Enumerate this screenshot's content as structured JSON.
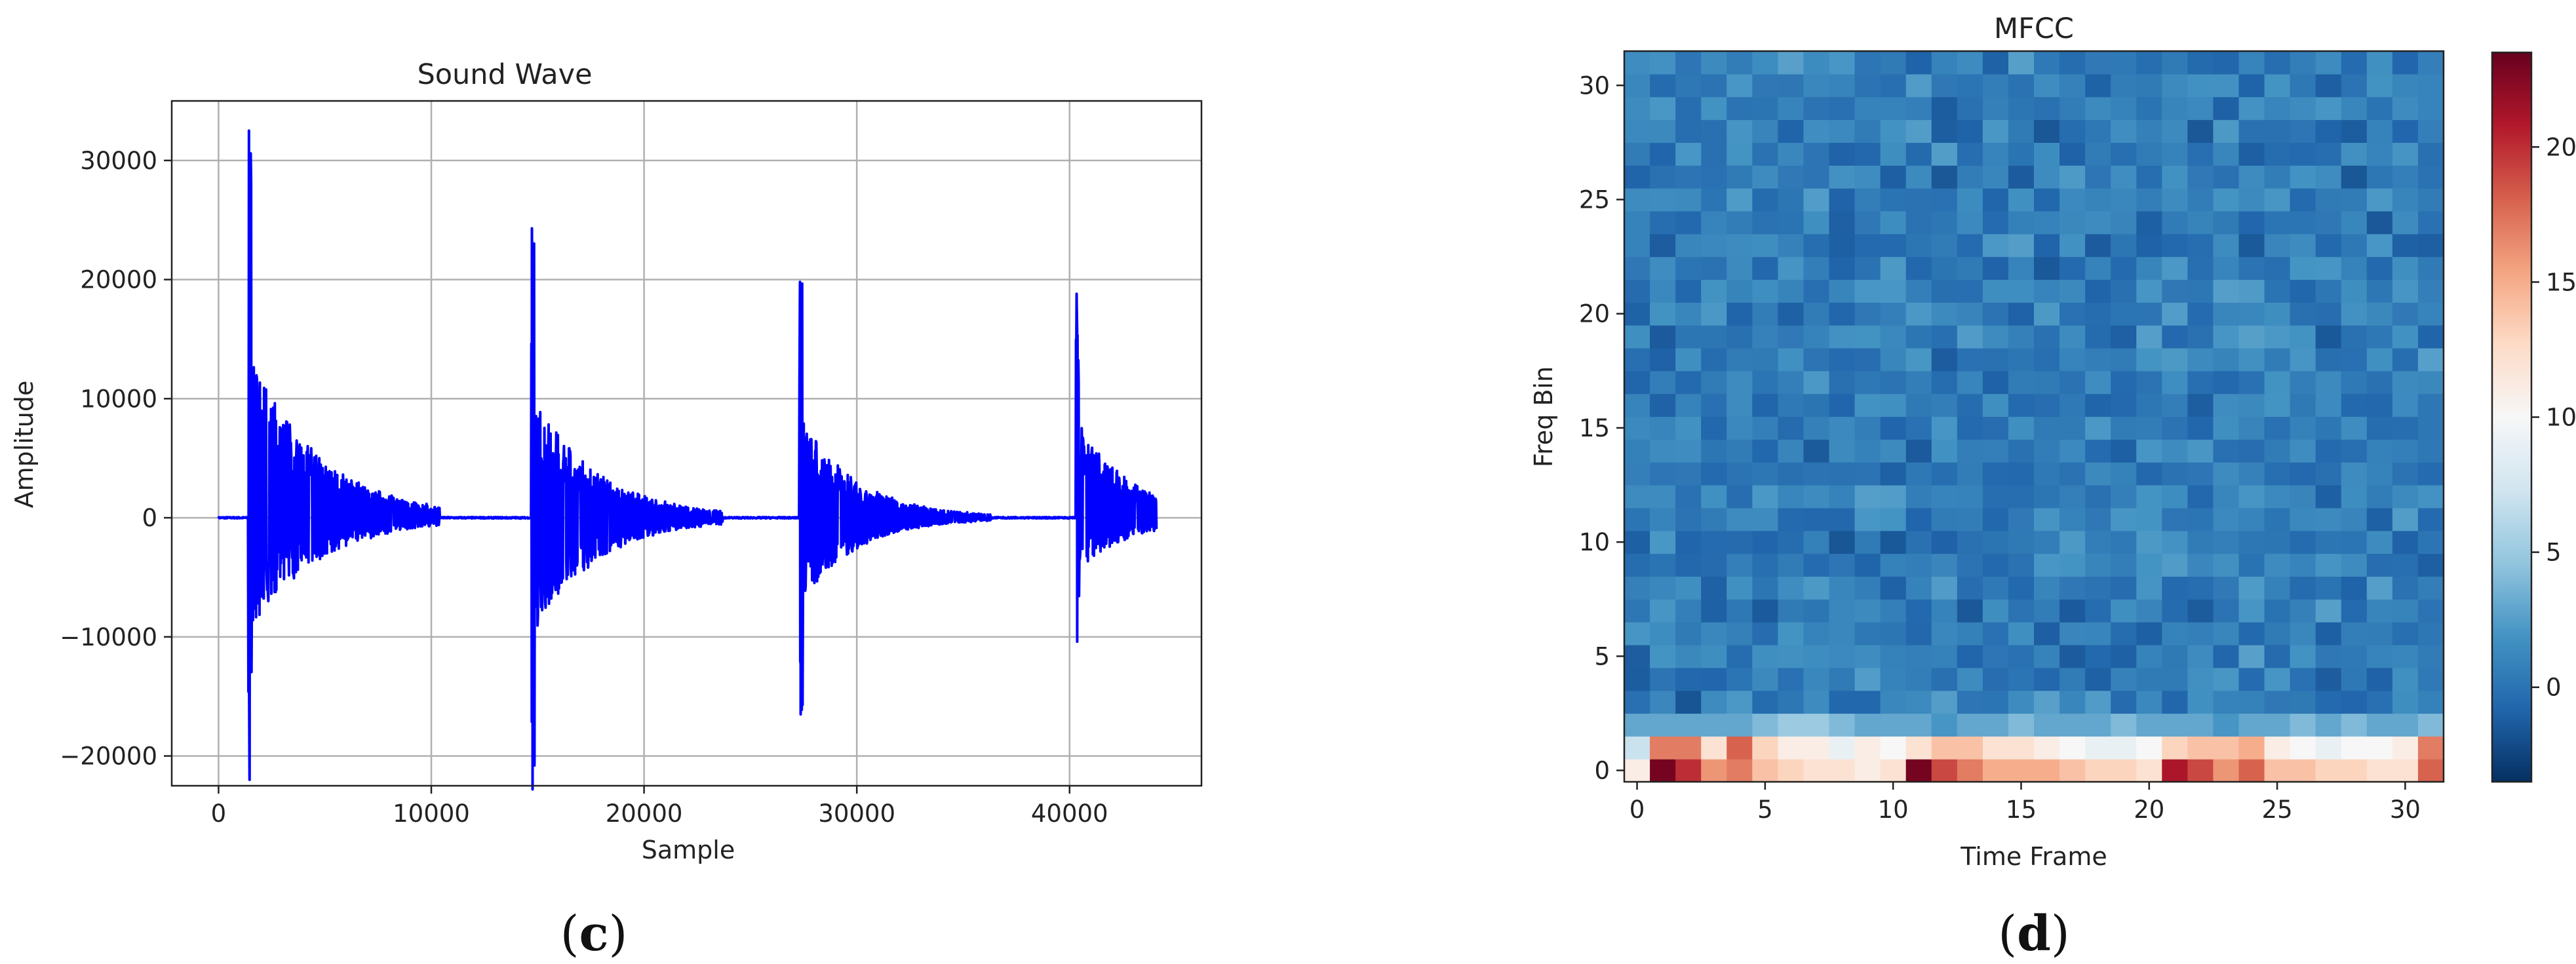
{
  "chart_data": [
    {
      "type": "line",
      "title": "Sound Wave",
      "xlabel": "Sample",
      "ylabel": "Amplitude",
      "panel_label": "c",
      "xlim": [
        -2200,
        46200
      ],
      "ylim": [
        -22500,
        35000
      ],
      "xticks": [
        0,
        10000,
        20000,
        30000,
        40000
      ],
      "yticks": [
        -20000,
        -10000,
        0,
        10000,
        20000,
        30000
      ],
      "grid": true,
      "color": "#0000ff",
      "x_range": [
        0,
        44100
      ],
      "bursts": [
        {
          "onset": 1400,
          "peak": 32500,
          "trough": -22000,
          "decay_samples": 3300
        },
        {
          "onset": 14700,
          "peak": 24300,
          "trough": -22800,
          "decay_samples": 3000
        },
        {
          "onset": 27300,
          "peak": 19800,
          "trough": -16500,
          "decay_samples": 2600
        },
        {
          "onset": 40300,
          "peak": 18800,
          "trough": -10400,
          "decay_samples": 2600
        }
      ]
    },
    {
      "type": "heatmap",
      "title": "MFCC",
      "xlabel": "Time Frame",
      "ylabel": "Freq Bin",
      "panel_label": "d",
      "cols": 32,
      "rows": 32,
      "xticks": [
        0,
        5,
        10,
        15,
        20,
        25,
        30
      ],
      "yticks": [
        0,
        5,
        10,
        15,
        20,
        25,
        30
      ],
      "colormap": "RdBu_r",
      "color_range": [
        -3.5,
        23.5
      ],
      "colorbar_ticks": [
        0,
        5,
        10,
        15,
        20
      ],
      "row0": [
        11,
        23,
        20,
        16,
        17,
        14,
        13,
        12,
        12,
        11,
        12,
        23,
        19,
        17,
        15,
        15,
        15,
        14,
        13,
        13,
        12,
        21,
        19,
        16,
        18,
        14,
        14,
        13,
        13,
        12,
        12,
        18
      ],
      "row1": [
        7,
        17,
        17,
        12,
        18,
        13,
        11,
        11,
        9,
        11,
        10,
        12,
        14,
        14,
        12,
        12,
        11,
        10,
        9,
        9,
        10,
        13,
        14,
        14,
        15,
        11,
        10,
        9,
        10,
        10,
        11,
        17
      ],
      "row2": [
        3,
        3,
        3,
        3,
        3,
        4,
        5,
        5,
        4,
        3,
        3,
        3,
        2,
        3,
        3,
        4,
        3,
        3,
        3,
        4,
        3,
        3,
        3,
        2,
        3,
        3,
        4,
        3,
        4,
        3,
        3,
        4
      ],
      "upper_rows_range": [
        -2.5,
        3.5
      ]
    }
  ]
}
